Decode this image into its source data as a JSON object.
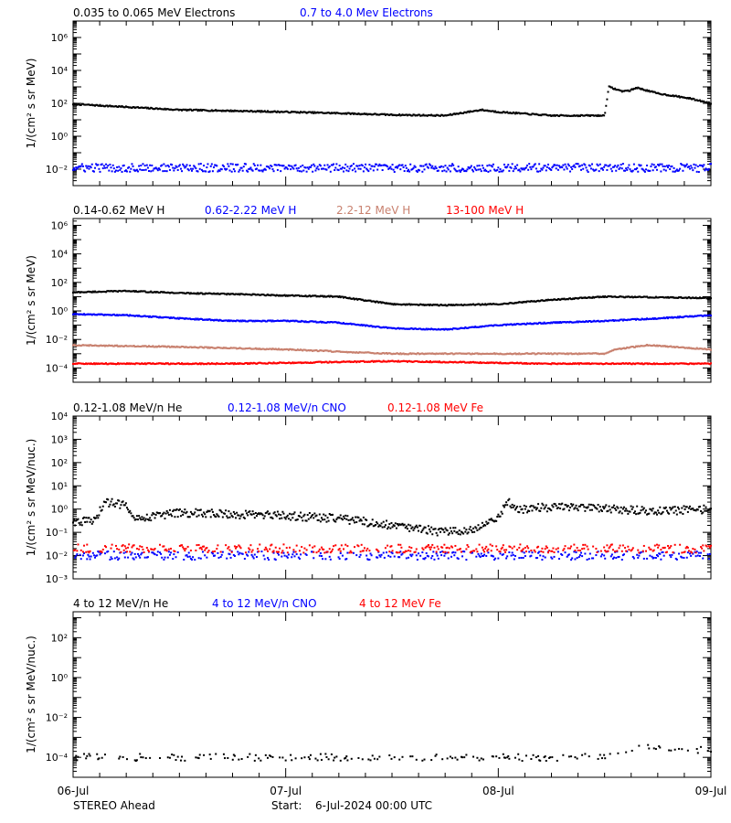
{
  "footer": {
    "spacecraft": "STEREO Ahead",
    "start_label": "Start:",
    "start_value": "6-Jul-2024 00:00 UTC"
  },
  "colors": {
    "black": "#000000",
    "blue": "#0000ff",
    "brown": "#c8806e",
    "red": "#ff0000"
  },
  "chart_data": [
    {
      "type": "scatter",
      "x_ticks": [
        "06-Jul",
        "07-Jul",
        "08-Jul",
        "09-Jul"
      ],
      "xlim": [
        "2024-07-06 00:00",
        "2024-07-09 00:00"
      ],
      "yscale": "log",
      "ylabel": "1/(cm² s sr MeV)",
      "ylim": [
        0.001,
        10000000
      ],
      "y_ticks": [
        0.01,
        1,
        100,
        10000,
        1000000
      ],
      "y_tick_labels": [
        "10⁻²",
        "10⁰",
        "10²",
        "10⁴",
        "10⁶"
      ],
      "series": [
        {
          "name": "0.035 to 0.065 MeV Electrons",
          "color": "black",
          "x": [
            0,
            0.25,
            0.5,
            0.75,
            1.0,
            1.25,
            1.5,
            1.75,
            1.92,
            2.0,
            2.25,
            2.5,
            2.52,
            2.58,
            2.62,
            2.65,
            2.75,
            2.9,
            3.0
          ],
          "y": [
            90,
            60,
            40,
            35,
            30,
            25,
            20,
            18,
            40,
            30,
            18,
            18,
            1000,
            550,
            600,
            900,
            400,
            200,
            100
          ]
        },
        {
          "name": "0.7 to 4.0 Mev Electrons",
          "color": "blue",
          "x": [
            0,
            3.0
          ],
          "y": [
            0.012,
            0.012
          ]
        }
      ]
    },
    {
      "type": "scatter",
      "x_ticks": [
        "06-Jul",
        "07-Jul",
        "08-Jul",
        "09-Jul"
      ],
      "xlim": [
        "2024-07-06 00:00",
        "2024-07-09 00:00"
      ],
      "yscale": "log",
      "ylabel": "1/(cm² s sr MeV)",
      "ylim": [
        1e-05,
        3000000
      ],
      "y_ticks": [
        0.0001,
        0.01,
        1,
        100,
        10000,
        1000000
      ],
      "y_tick_labels": [
        "10⁻⁴",
        "10⁻²",
        "10⁰",
        "10²",
        "10⁴",
        "10⁶"
      ],
      "series": [
        {
          "name": "0.14-0.62 MeV H",
          "color": "black",
          "x": [
            0,
            0.25,
            0.5,
            0.75,
            1.0,
            1.25,
            1.5,
            1.75,
            2.0,
            2.25,
            2.5,
            2.75,
            3.0
          ],
          "y": [
            20,
            25,
            18,
            15,
            12,
            10,
            3,
            2.5,
            3,
            6,
            10,
            9,
            8
          ]
        },
        {
          "name": "0.62-2.22 MeV H",
          "color": "blue",
          "x": [
            0,
            0.25,
            0.5,
            0.75,
            1.0,
            1.25,
            1.5,
            1.75,
            2.0,
            2.25,
            2.5,
            2.75,
            3.0
          ],
          "y": [
            0.6,
            0.5,
            0.3,
            0.2,
            0.2,
            0.15,
            0.06,
            0.05,
            0.1,
            0.15,
            0.2,
            0.3,
            0.5
          ]
        },
        {
          "name": "2.2-12 MeV H",
          "color": "brown",
          "x": [
            0,
            0.5,
            1.0,
            1.5,
            2.0,
            2.5,
            2.55,
            2.7,
            3.0
          ],
          "y": [
            0.004,
            0.003,
            0.002,
            0.001,
            0.001,
            0.001,
            0.002,
            0.004,
            0.002
          ]
        },
        {
          "name": "13-100 MeV H",
          "color": "red",
          "x": [
            0,
            0.75,
            1.5,
            2.25,
            3.0
          ],
          "y": [
            0.0002,
            0.0002,
            0.0003,
            0.0002,
            0.0002
          ]
        }
      ]
    },
    {
      "type": "scatter",
      "x_ticks": [
        "06-Jul",
        "07-Jul",
        "08-Jul",
        "09-Jul"
      ],
      "xlim": [
        "2024-07-06 00:00",
        "2024-07-09 00:00"
      ],
      "yscale": "log",
      "ylabel": "1/(cm² s sr MeV/nuc.)",
      "ylim": [
        0.001,
        10000
      ],
      "y_ticks": [
        0.001,
        0.01,
        0.1,
        1,
        10,
        100,
        1000,
        10000
      ],
      "y_tick_labels": [
        "10⁻³",
        "10⁻²",
        "10⁻¹",
        "10⁰",
        "10¹",
        "10²",
        "10³",
        "10⁴"
      ],
      "series": [
        {
          "name": "0.12-1.08 MeV/n He",
          "color": "black",
          "x": [
            0,
            0.1,
            0.15,
            0.25,
            0.3,
            0.5,
            0.75,
            1.0,
            1.25,
            1.5,
            1.75,
            1.9,
            2.0,
            2.05,
            2.1,
            2.25,
            2.5,
            2.75,
            3.0
          ],
          "y": [
            0.3,
            0.3,
            2,
            1.5,
            0.4,
            0.7,
            0.6,
            0.5,
            0.4,
            0.2,
            0.1,
            0.15,
            0.5,
            2,
            1.0,
            1.2,
            1.0,
            0.8,
            1.0
          ]
        },
        {
          "name": "0.12-1.08 MeV/n CNO",
          "color": "blue",
          "x": [
            0,
            3.0
          ],
          "y": [
            0.01,
            0.01
          ]
        },
        {
          "name": "0.12-1.08 MeV Fe",
          "color": "red",
          "x": [
            0,
            3.0
          ],
          "y": [
            0.02,
            0.02
          ]
        }
      ]
    },
    {
      "type": "scatter",
      "x_ticks": [
        "06-Jul",
        "07-Jul",
        "08-Jul",
        "09-Jul"
      ],
      "xlim": [
        "2024-07-06 00:00",
        "2024-07-09 00:00"
      ],
      "yscale": "log",
      "ylabel": "1/(cm² s sr MeV/nuc.)",
      "ylim": [
        1e-05,
        2000
      ],
      "y_ticks": [
        0.0001,
        0.01,
        1,
        100
      ],
      "y_tick_labels": [
        "10⁻⁴",
        "10⁻²",
        "10⁰",
        "10²"
      ],
      "series": [
        {
          "name": "4 to 12 MeV/n He",
          "color": "black",
          "x": [
            0,
            0.5,
            1.0,
            1.5,
            2.0,
            2.5,
            2.65,
            2.8,
            3.0
          ],
          "y": [
            0.0001,
            0.0001,
            0.0001,
            0.0001,
            0.0001,
            0.0001,
            0.0003,
            0.0003,
            0.0002
          ]
        },
        {
          "name": "4 to 12 MeV/n CNO",
          "color": "blue",
          "x": [],
          "y": []
        },
        {
          "name": "4 to 12 MeV Fe",
          "color": "red",
          "x": [],
          "y": []
        }
      ]
    }
  ]
}
